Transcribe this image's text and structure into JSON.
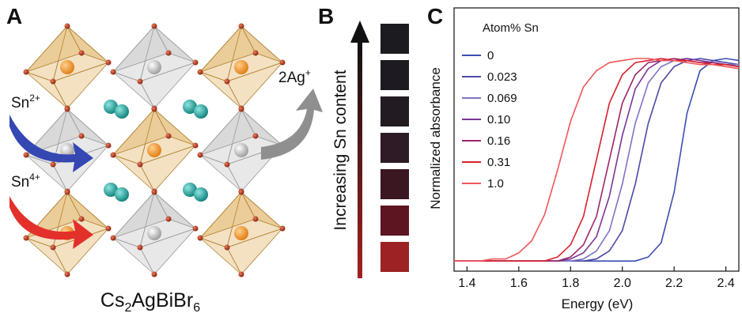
{
  "panel_a": {
    "label": "A",
    "sn2": {
      "base": "Sn",
      "sup": "2+"
    },
    "sn4": {
      "base": "Sn",
      "sup": "4+"
    },
    "ag": {
      "base": "2Ag",
      "sup": "+"
    },
    "formula": [
      "Cs",
      "2",
      "AgBiBr",
      "6"
    ]
  },
  "panel_b": {
    "label": "B",
    "axis_label": "Increasing Sn content",
    "swatch_colors": [
      "#1b1b20",
      "#1d1b21",
      "#221b22",
      "#2f1b26",
      "#3b1722",
      "#5c1521",
      "#9c2224"
    ]
  },
  "chart_data": {
    "type": "line",
    "label": "C",
    "x_label": "Energy (eV)",
    "y_label": "Normalized absorbance",
    "legend_title": "Atom% Sn",
    "x": [
      1.35,
      1.4,
      1.45,
      1.5,
      1.55,
      1.6,
      1.65,
      1.7,
      1.75,
      1.8,
      1.85,
      1.9,
      1.95,
      2.0,
      2.05,
      2.1,
      2.15,
      2.2,
      2.25,
      2.3,
      2.35,
      2.4,
      2.45
    ],
    "series": [
      {
        "name": "0",
        "color": "#3b4db3",
        "values": [
          0,
          0,
          0,
          0,
          0,
          0,
          0,
          0,
          0,
          0,
          0,
          0,
          0,
          0,
          0,
          0.02,
          0.09,
          0.34,
          0.73,
          0.94,
          0.99,
          1.0,
          0.99
        ]
      },
      {
        "name": "0.023",
        "color": "#4b4aa6",
        "values": [
          0,
          0,
          0,
          0,
          0,
          0,
          0,
          0,
          0,
          0,
          0,
          0.01,
          0.05,
          0.15,
          0.38,
          0.68,
          0.88,
          0.96,
          0.99,
          1.0,
          0.99,
          0.98,
          0.97
        ]
      },
      {
        "name": "0.069",
        "color": "#7d74c6",
        "values": [
          0,
          0,
          0,
          0,
          0,
          0,
          0,
          0,
          0,
          0,
          0.01,
          0.05,
          0.15,
          0.38,
          0.68,
          0.88,
          0.96,
          0.99,
          1.0,
          0.99,
          0.98,
          0.97,
          0.97
        ]
      },
      {
        "name": "0.10",
        "color": "#7a3596",
        "values": [
          0,
          0,
          0,
          0,
          0,
          0,
          0,
          0,
          0,
          0.01,
          0.04,
          0.12,
          0.32,
          0.62,
          0.85,
          0.95,
          0.99,
          0.99,
          1.0,
          0.99,
          0.98,
          0.97,
          0.96
        ]
      },
      {
        "name": "0.16",
        "color": "#9a2568",
        "values": [
          0,
          0,
          0,
          0,
          0,
          0,
          0,
          0,
          0,
          0.02,
          0.08,
          0.22,
          0.5,
          0.78,
          0.92,
          0.98,
          0.99,
          1.0,
          0.99,
          0.98,
          0.98,
          0.97,
          0.96
        ]
      },
      {
        "name": "0.31",
        "color": "#d9202c",
        "values": [
          0,
          0,
          0,
          0,
          0,
          0,
          0,
          0,
          0.02,
          0.08,
          0.22,
          0.5,
          0.78,
          0.92,
          0.98,
          0.99,
          1.0,
          0.99,
          0.99,
          0.98,
          0.97,
          0.97,
          0.96
        ]
      },
      {
        "name": "1.0",
        "color": "#f0565a",
        "values": [
          0,
          0,
          0,
          0.01,
          0.01,
          0.04,
          0.1,
          0.23,
          0.45,
          0.69,
          0.86,
          0.94,
          0.98,
          0.99,
          1.0,
          1.0,
          0.99,
          0.99,
          0.98,
          0.97,
          0.97,
          0.96,
          0.95
        ]
      }
    ],
    "xlim": [
      1.35,
      2.45
    ],
    "ylim": [
      -0.05,
      1.25
    ],
    "xticks": [
      1.4,
      1.6,
      1.8,
      {
        "value": 2,
        "label": "2.0"
      },
      2.2,
      2.4
    ]
  }
}
